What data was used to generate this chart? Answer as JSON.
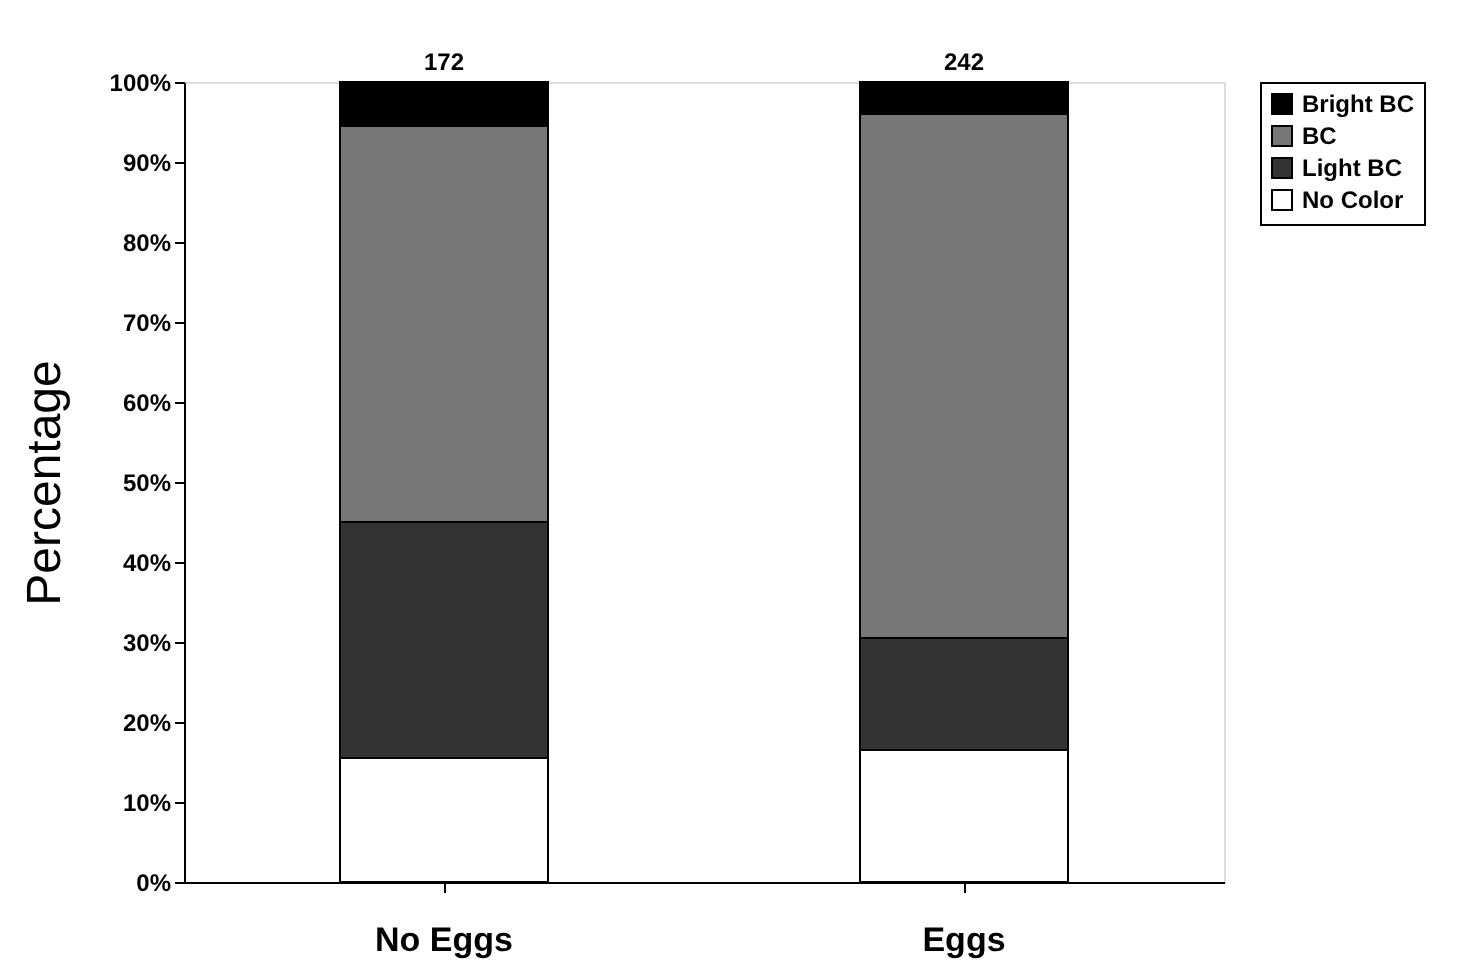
{
  "chart_data": {
    "type": "bar",
    "stacked": true,
    "ylabel": "Percentage",
    "categories": [
      "No Eggs",
      "Eggs"
    ],
    "series": [
      {
        "name": "No Color",
        "color": "#ffffff",
        "values": [
          15.5,
          16.5
        ]
      },
      {
        "name": "Light BC",
        "color": "#333333",
        "values": [
          29.5,
          14
        ]
      },
      {
        "name": "BC",
        "color": "#777777",
        "values": [
          49.5,
          65.5
        ]
      },
      {
        "name": "Bright BC",
        "color": "#000000",
        "values": [
          5.5,
          4
        ]
      }
    ],
    "annotations": [
      {
        "text": "172",
        "x": "No Eggs",
        "y": 100
      },
      {
        "text": "242",
        "x": "Eggs",
        "y": 100
      }
    ],
    "ylim": [
      0,
      100
    ],
    "yticks": [
      {
        "value": 0,
        "label": "0%"
      },
      {
        "value": 10,
        "label": "10%"
      },
      {
        "value": 20,
        "label": "20%"
      },
      {
        "value": 30,
        "label": "30%"
      },
      {
        "value": 40,
        "label": "40%"
      },
      {
        "value": 50,
        "label": "50%"
      },
      {
        "value": 60,
        "label": "60%"
      },
      {
        "value": 70,
        "label": "70%"
      },
      {
        "value": 80,
        "label": "80%"
      },
      {
        "value": 90,
        "label": "90%"
      },
      {
        "value": 100,
        "label": "100%"
      }
    ],
    "grid": false,
    "legend": "right"
  }
}
